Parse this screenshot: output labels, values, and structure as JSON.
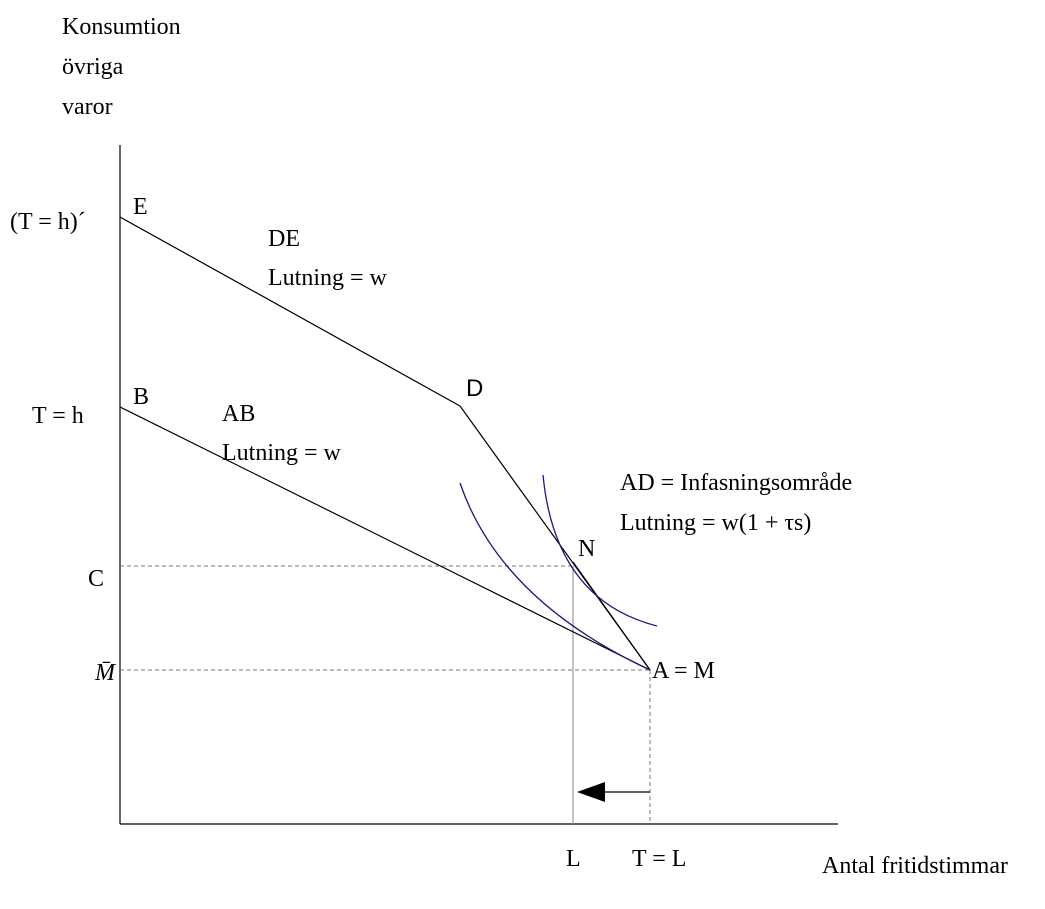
{
  "y_axis_label": [
    "Konsumtion",
    "övriga",
    "varor"
  ],
  "x_axis_label": "Antal fritidstimmar",
  "y_labels": {
    "th_prime": "(T = h)´",
    "th": "T = h",
    "c": "C",
    "m_bar": "M̄"
  },
  "points": {
    "e": "E",
    "b": "B",
    "d": "D",
    "n": "N",
    "a": "A = M"
  },
  "annotations": {
    "de": [
      "DE",
      "Lutning = w"
    ],
    "ab": [
      "AB",
      "Lutning = w"
    ],
    "ad": [
      "AD = Infasningsområde",
      "Lutning = w(1 + τs)"
    ]
  },
  "x_labels": {
    "l": "L",
    "tl": "T = L"
  }
}
